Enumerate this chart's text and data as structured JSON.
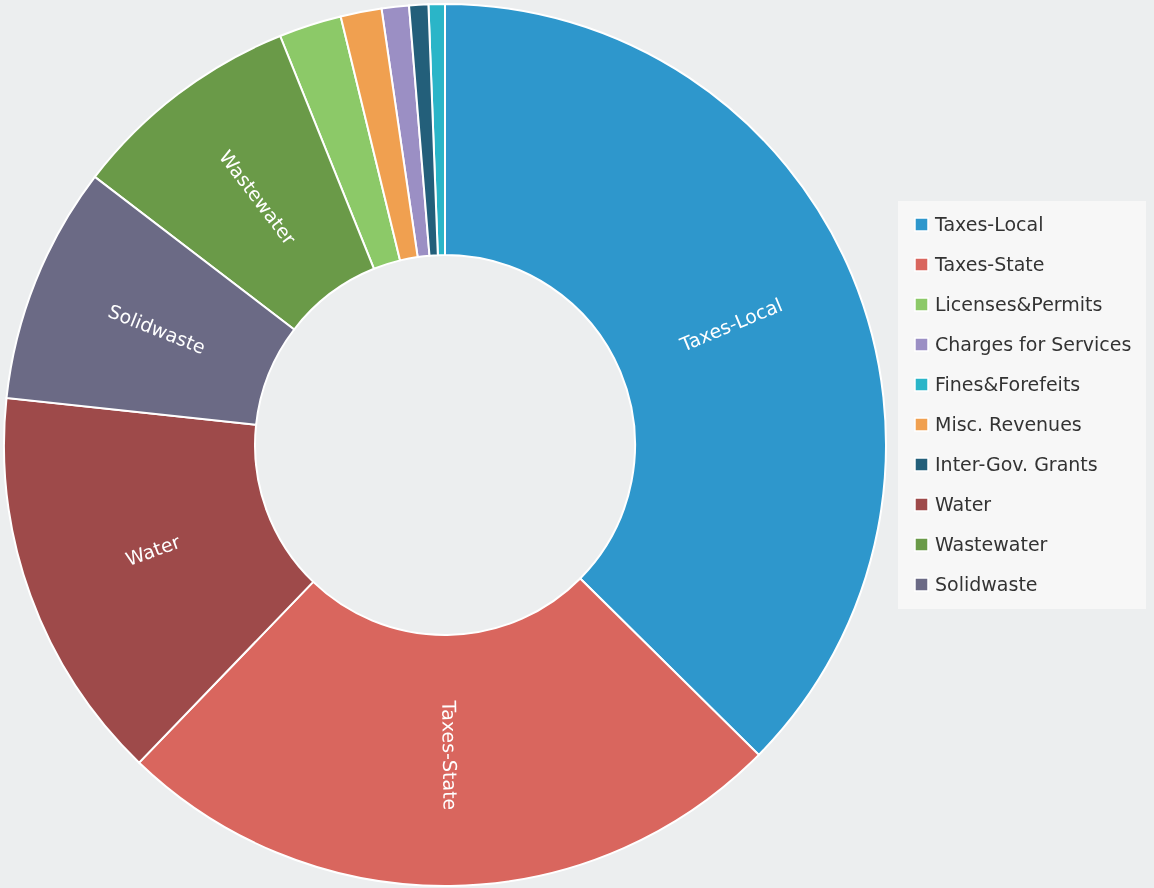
{
  "chart_data": {
    "type": "donut",
    "categories": [
      "Taxes-Local",
      "Taxes-State",
      "Licenses&Permits",
      "Charges for Services",
      "Fines&Forefeits",
      "Misc. Revenues",
      "Inter-Gov. Grants",
      "Water",
      "Wastewater",
      "Solidwaste"
    ],
    "values": [
      37.4,
      24.8,
      2.3,
      1.0,
      0.6,
      1.5,
      0.7,
      14.5,
      8.5,
      8.7
    ],
    "colors": [
      "#2e97cc",
      "#d9665e",
      "#8cc968",
      "#9b8fc4",
      "#2ab5c8",
      "#f0a050",
      "#235f7a",
      "#9e4a4a",
      "#6a9a48",
      "#6b6a85"
    ],
    "legend": "right"
  }
}
